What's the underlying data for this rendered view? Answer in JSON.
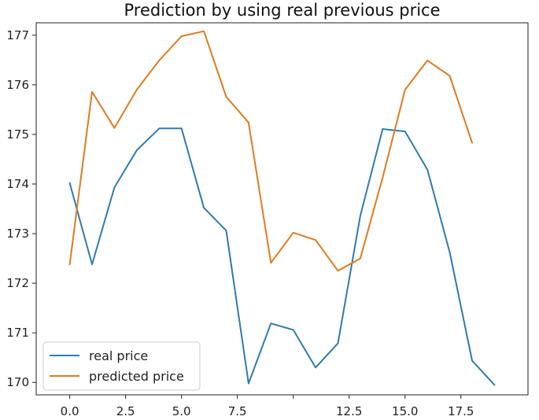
{
  "chart_data": {
    "type": "line",
    "title": "Prediction by using real previous price",
    "xlabel": "",
    "ylabel": "",
    "xlim": [
      -1.5,
      20.5
    ],
    "ylim": [
      169.75,
      177.25
    ],
    "x_ticks": [
      0.0,
      2.5,
      5.0,
      7.5,
      10.0,
      12.5,
      15.0,
      17.5
    ],
    "x_tick_labels": [
      "0.0",
      "2.5",
      "5.0",
      "7.5",
      "",
      "12.5",
      "15.0",
      "17.5"
    ],
    "y_ticks": [
      170,
      171,
      172,
      173,
      174,
      175,
      176,
      177
    ],
    "y_tick_labels": [
      "170",
      "171",
      "172",
      "173",
      "174",
      "175",
      "176",
      "177"
    ],
    "grid": false,
    "legend_position": "lower-left",
    "series": [
      {
        "name": "real price",
        "color": "#2f7bb0",
        "x": [
          0,
          1,
          2,
          3,
          4,
          5,
          6,
          7,
          8,
          9,
          10,
          11,
          12,
          13,
          14,
          15,
          16,
          17,
          18,
          19
        ],
        "values": [
          174.02,
          172.38,
          173.93,
          174.68,
          175.12,
          175.12,
          173.52,
          173.06,
          169.98,
          171.19,
          171.06,
          170.3,
          170.79,
          173.36,
          175.11,
          175.06,
          174.29,
          172.62,
          170.44,
          169.95
        ]
      },
      {
        "name": "predicted price",
        "color": "#e07b1f",
        "x": [
          0,
          1,
          2,
          3,
          4,
          5,
          6,
          7,
          8,
          9,
          10,
          11,
          12,
          13,
          14,
          15,
          16,
          17,
          18
        ],
        "values": [
          172.38,
          175.86,
          175.13,
          175.9,
          176.49,
          176.98,
          177.08,
          175.76,
          175.24,
          172.41,
          173.02,
          172.87,
          172.25,
          172.5,
          174.13,
          175.9,
          176.49,
          176.18,
          174.83
        ]
      }
    ]
  }
}
